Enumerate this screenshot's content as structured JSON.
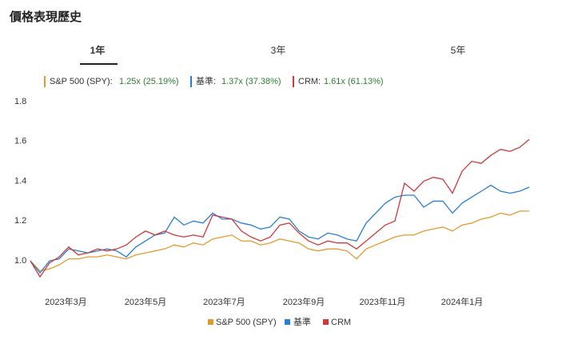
{
  "header": {
    "title": "價格表現歷史",
    "tabs": [
      "1年",
      "3年",
      "5年"
    ],
    "active_tab": 0
  },
  "summary": [
    {
      "label": "S&P 500 (SPY):",
      "value": "1.25x (25.19%)"
    },
    {
      "label": "基準:",
      "value": "1.37x (37.38%)"
    },
    {
      "label": "CRM:",
      "value": "1.61x (61.13%)"
    }
  ],
  "chart_data": {
    "type": "line",
    "x": [
      0,
      1,
      2,
      3,
      4,
      5,
      6,
      7,
      8,
      9,
      10,
      11,
      12,
      13,
      14,
      15,
      16,
      17,
      18,
      19,
      20,
      21,
      22,
      23,
      24,
      25,
      26,
      27,
      28,
      29,
      30,
      31,
      32,
      33,
      34,
      35,
      36,
      37,
      38,
      39,
      40,
      41,
      42,
      43,
      44,
      45,
      46,
      47,
      48,
      49,
      50,
      51,
      52
    ],
    "xlim": [
      0,
      52
    ],
    "xticks": [
      {
        "value": 3.7,
        "label": "2023年3月"
      },
      {
        "value": 12,
        "label": "2023年5月"
      },
      {
        "value": 20.2,
        "label": "2023年7月"
      },
      {
        "value": 28.5,
        "label": "2023年9月"
      },
      {
        "value": 36.7,
        "label": "2023年11月"
      },
      {
        "value": 45,
        "label": "2024年1月"
      }
    ],
    "ylim": [
      0.9,
      1.8
    ],
    "yticks": [
      {
        "value": 1,
        "label": "1.0"
      },
      1.2,
      1.4,
      1.6,
      1.8
    ],
    "grid": false,
    "series": [
      {
        "name": "S&P 500 (SPY)",
        "color": "#e39a2d",
        "values": [
          1.0,
          0.95,
          0.96,
          0.98,
          1.01,
          1.01,
          1.02,
          1.02,
          1.03,
          1.02,
          1.01,
          1.03,
          1.04,
          1.05,
          1.06,
          1.08,
          1.07,
          1.09,
          1.08,
          1.11,
          1.12,
          1.13,
          1.1,
          1.1,
          1.08,
          1.09,
          1.11,
          1.1,
          1.09,
          1.06,
          1.05,
          1.06,
          1.06,
          1.05,
          1.01,
          1.06,
          1.08,
          1.1,
          1.12,
          1.13,
          1.13,
          1.15,
          1.16,
          1.17,
          1.15,
          1.18,
          1.19,
          1.21,
          1.22,
          1.24,
          1.23,
          1.25,
          1.25
        ]
      },
      {
        "name": "基準",
        "color": "#2a7fd4",
        "values": [
          1.0,
          0.94,
          1.0,
          1.01,
          1.06,
          1.05,
          1.04,
          1.05,
          1.06,
          1.05,
          1.02,
          1.07,
          1.1,
          1.13,
          1.14,
          1.22,
          1.18,
          1.2,
          1.19,
          1.24,
          1.21,
          1.21,
          1.19,
          1.18,
          1.16,
          1.17,
          1.22,
          1.21,
          1.15,
          1.12,
          1.11,
          1.14,
          1.13,
          1.11,
          1.1,
          1.19,
          1.24,
          1.29,
          1.32,
          1.33,
          1.33,
          1.27,
          1.3,
          1.3,
          1.24,
          1.29,
          1.32,
          1.35,
          1.38,
          1.35,
          1.34,
          1.35,
          1.37
        ]
      },
      {
        "name": "CRM",
        "color": "#d0393a",
        "values": [
          1.0,
          0.92,
          0.99,
          1.02,
          1.07,
          1.03,
          1.04,
          1.06,
          1.05,
          1.06,
          1.08,
          1.12,
          1.15,
          1.13,
          1.15,
          1.13,
          1.12,
          1.13,
          1.12,
          1.23,
          1.22,
          1.21,
          1.15,
          1.12,
          1.1,
          1.12,
          1.18,
          1.19,
          1.14,
          1.1,
          1.08,
          1.1,
          1.09,
          1.09,
          1.06,
          1.1,
          1.14,
          1.18,
          1.2,
          1.39,
          1.35,
          1.4,
          1.42,
          1.41,
          1.34,
          1.45,
          1.5,
          1.49,
          1.53,
          1.56,
          1.55,
          1.57,
          1.61
        ]
      }
    ]
  }
}
